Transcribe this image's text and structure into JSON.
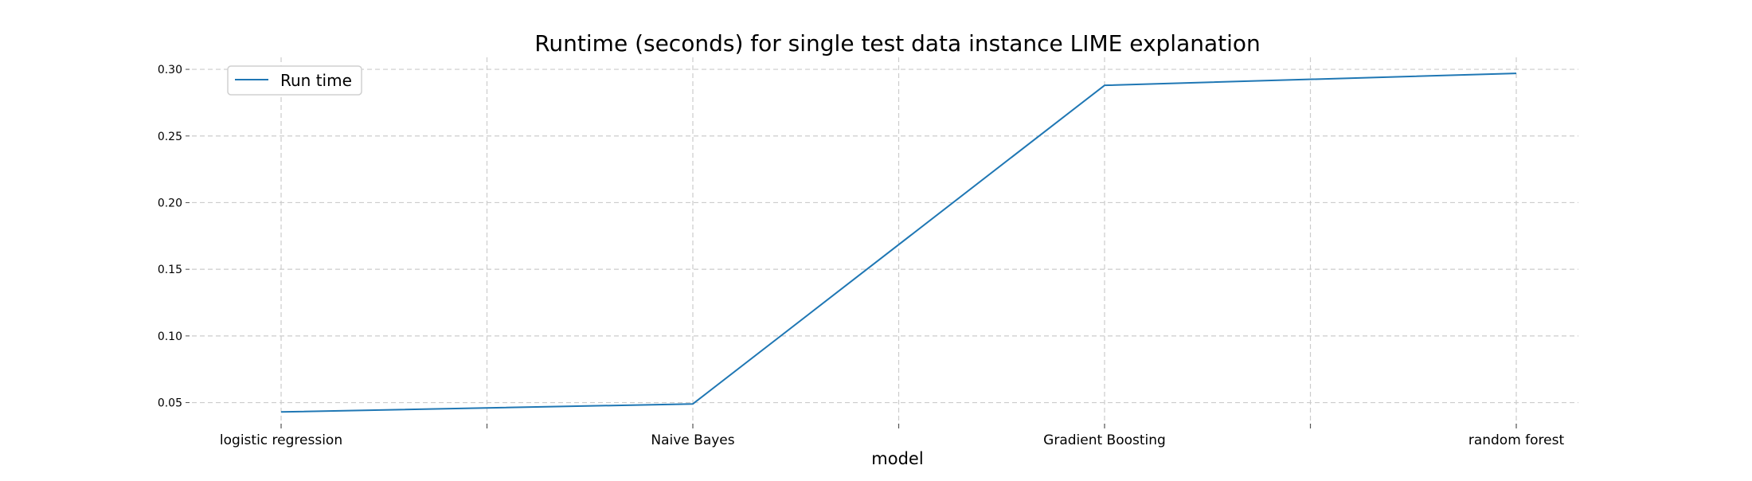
{
  "chart_data": {
    "type": "line",
    "title": "Runtime (seconds) for single test data instance LIME explanation",
    "xlabel": "model",
    "ylabel": "",
    "categories": [
      "logistic regression",
      "Naive Bayes",
      "Gradient Boosting",
      "random forest"
    ],
    "series": [
      {
        "name": "Run time",
        "values": [
          0.043,
          0.049,
          0.288,
          0.297
        ]
      }
    ],
    "ylim": [
      0.033,
      0.309
    ],
    "yticks": [
      "0.05",
      "0.10",
      "0.15",
      "0.20",
      "0.25",
      "0.30"
    ],
    "grid": true,
    "legend_position": "top-left",
    "colors": {
      "line": "#1f77b4",
      "grid": "#cccccc",
      "text": "#000000"
    }
  }
}
